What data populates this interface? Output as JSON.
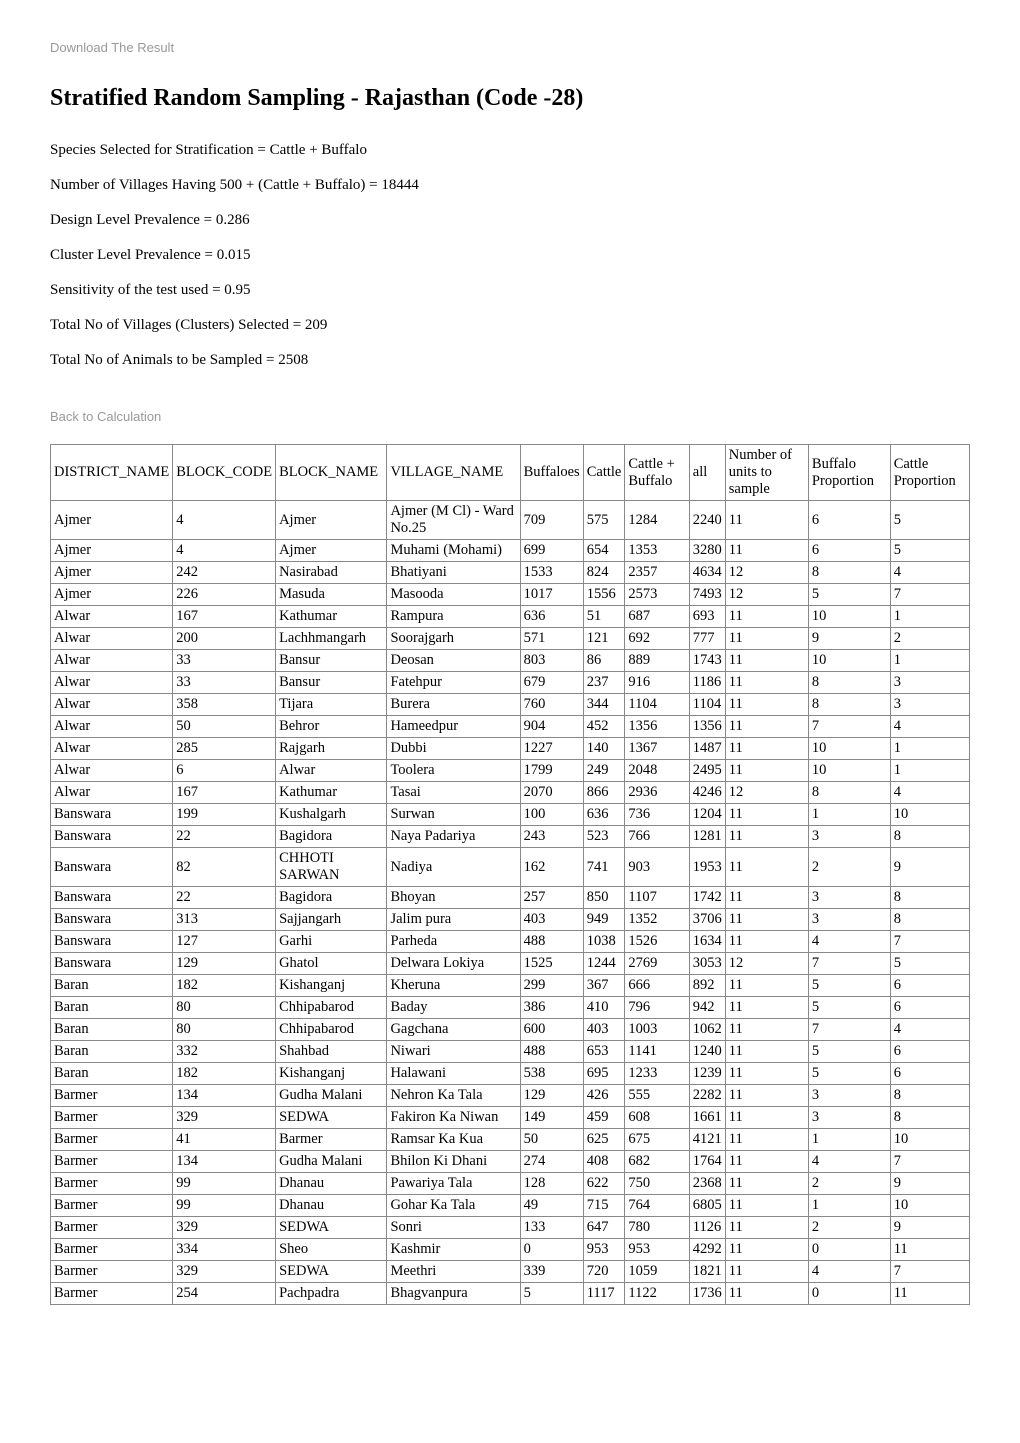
{
  "download_link": "Download The Result",
  "title": "Stratified Random Sampling - Rajasthan (Code -28)",
  "params": [
    "Species Selected for Stratification = Cattle + Buffalo",
    "Number of Villages Having 500 + (Cattle + Buffalo) = 18444",
    "Design Level Prevalence = 0.286",
    "Cluster Level Prevalence = 0.015",
    "Sensitivity of the test used = 0.95",
    "Total No of Villages (Clusters) Selected = 209",
    "Total No of Animals to be Sampled = 2508"
  ],
  "back_link": "Back to Calculation",
  "table": {
    "columns": [
      "DISTRICT_NAME",
      "BLOCK_CODE",
      "BLOCK_NAME",
      "VILLAGE_NAME",
      "Buffaloes",
      "Cattle",
      "Cattle + Buffalo",
      "all",
      "Number of units to sample",
      "Buffalo Proportion",
      "Cattle Proportion"
    ],
    "rows": [
      [
        "Ajmer",
        "4",
        "Ajmer",
        "Ajmer (M Cl) - Ward No.25",
        "709",
        "575",
        "1284",
        "2240",
        "11",
        "6",
        "5"
      ],
      [
        "Ajmer",
        "4",
        "Ajmer",
        "Muhami (Mohami)",
        "699",
        "654",
        "1353",
        "3280",
        "11",
        "6",
        "5"
      ],
      [
        "Ajmer",
        "242",
        "Nasirabad",
        "Bhatiyani",
        "1533",
        "824",
        "2357",
        "4634",
        "12",
        "8",
        "4"
      ],
      [
        "Ajmer",
        "226",
        "Masuda",
        "Masooda",
        "1017",
        "1556",
        "2573",
        "7493",
        "12",
        "5",
        "7"
      ],
      [
        "Alwar",
        "167",
        "Kathumar",
        "Rampura",
        "636",
        "51",
        "687",
        "693",
        "11",
        "10",
        "1"
      ],
      [
        "Alwar",
        "200",
        "Lachhmangarh",
        "Soorajgarh",
        "571",
        "121",
        "692",
        "777",
        "11",
        "9",
        "2"
      ],
      [
        "Alwar",
        "33",
        "Bansur",
        "Deosan",
        "803",
        "86",
        "889",
        "1743",
        "11",
        "10",
        "1"
      ],
      [
        "Alwar",
        "33",
        "Bansur",
        "Fatehpur",
        "679",
        "237",
        "916",
        "1186",
        "11",
        "8",
        "3"
      ],
      [
        "Alwar",
        "358",
        "Tijara",
        "Burera",
        "760",
        "344",
        "1104",
        "1104",
        "11",
        "8",
        "3"
      ],
      [
        "Alwar",
        "50",
        "Behror",
        "Hameedpur",
        "904",
        "452",
        "1356",
        "1356",
        "11",
        "7",
        "4"
      ],
      [
        "Alwar",
        "285",
        "Rajgarh",
        "Dubbi",
        "1227",
        "140",
        "1367",
        "1487",
        "11",
        "10",
        "1"
      ],
      [
        "Alwar",
        "6",
        "Alwar",
        "Toolera",
        "1799",
        "249",
        "2048",
        "2495",
        "11",
        "10",
        "1"
      ],
      [
        "Alwar",
        "167",
        "Kathumar",
        "Tasai",
        "2070",
        "866",
        "2936",
        "4246",
        "12",
        "8",
        "4"
      ],
      [
        "Banswara",
        "199",
        "Kushalgarh",
        "Surwan",
        "100",
        "636",
        "736",
        "1204",
        "11",
        "1",
        "10"
      ],
      [
        "Banswara",
        "22",
        "Bagidora",
        "Naya Padariya",
        "243",
        "523",
        "766",
        "1281",
        "11",
        "3",
        "8"
      ],
      [
        "Banswara",
        "82",
        "CHHOTI SARWAN",
        "Nadiya",
        "162",
        "741",
        "903",
        "1953",
        "11",
        "2",
        "9"
      ],
      [
        "Banswara",
        "22",
        "Bagidora",
        "Bhoyan",
        "257",
        "850",
        "1107",
        "1742",
        "11",
        "3",
        "8"
      ],
      [
        "Banswara",
        "313",
        "Sajjangarh",
        "Jalim pura",
        "403",
        "949",
        "1352",
        "3706",
        "11",
        "3",
        "8"
      ],
      [
        "Banswara",
        "127",
        "Garhi",
        "Parheda",
        "488",
        "1038",
        "1526",
        "1634",
        "11",
        "4",
        "7"
      ],
      [
        "Banswara",
        "129",
        "Ghatol",
        "Delwara Lokiya",
        "1525",
        "1244",
        "2769",
        "3053",
        "12",
        "7",
        "5"
      ],
      [
        "Baran",
        "182",
        "Kishanganj",
        "Kheruna",
        "299",
        "367",
        "666",
        "892",
        "11",
        "5",
        "6"
      ],
      [
        "Baran",
        "80",
        "Chhipabarod",
        "Baday",
        "386",
        "410",
        "796",
        "942",
        "11",
        "5",
        "6"
      ],
      [
        "Baran",
        "80",
        "Chhipabarod",
        "Gagchana",
        "600",
        "403",
        "1003",
        "1062",
        "11",
        "7",
        "4"
      ],
      [
        "Baran",
        "332",
        "Shahbad",
        "Niwari",
        "488",
        "653",
        "1141",
        "1240",
        "11",
        "5",
        "6"
      ],
      [
        "Baran",
        "182",
        "Kishanganj",
        "Halawani",
        "538",
        "695",
        "1233",
        "1239",
        "11",
        "5",
        "6"
      ],
      [
        "Barmer",
        "134",
        "Gudha Malani",
        "Nehron Ka Tala",
        "129",
        "426",
        "555",
        "2282",
        "11",
        "3",
        "8"
      ],
      [
        "Barmer",
        "329",
        "SEDWA",
        "Fakiron Ka Niwan",
        "149",
        "459",
        "608",
        "1661",
        "11",
        "3",
        "8"
      ],
      [
        "Barmer",
        "41",
        "Barmer",
        "Ramsar Ka Kua",
        "50",
        "625",
        "675",
        "4121",
        "11",
        "1",
        "10"
      ],
      [
        "Barmer",
        "134",
        "Gudha Malani",
        "Bhilon Ki Dhani",
        "274",
        "408",
        "682",
        "1764",
        "11",
        "4",
        "7"
      ],
      [
        "Barmer",
        "99",
        "Dhanau",
        "Pawariya Tala",
        "128",
        "622",
        "750",
        "2368",
        "11",
        "2",
        "9"
      ],
      [
        "Barmer",
        "99",
        "Dhanau",
        "Gohar Ka Tala",
        "49",
        "715",
        "764",
        "6805",
        "11",
        "1",
        "10"
      ],
      [
        "Barmer",
        "329",
        "SEDWA",
        "Sonri",
        "133",
        "647",
        "780",
        "1126",
        "11",
        "2",
        "9"
      ],
      [
        "Barmer",
        "334",
        "Sheo",
        "Kashmir",
        "0",
        "953",
        "953",
        "4292",
        "11",
        "0",
        "11"
      ],
      [
        "Barmer",
        "329",
        "SEDWA",
        "Meethri",
        "339",
        "720",
        "1059",
        "1821",
        "11",
        "4",
        "7"
      ],
      [
        "Barmer",
        "254",
        "Pachpadra",
        "Bhagvanpura",
        "5",
        "1117",
        "1122",
        "1736",
        "11",
        "0",
        "11"
      ]
    ]
  }
}
